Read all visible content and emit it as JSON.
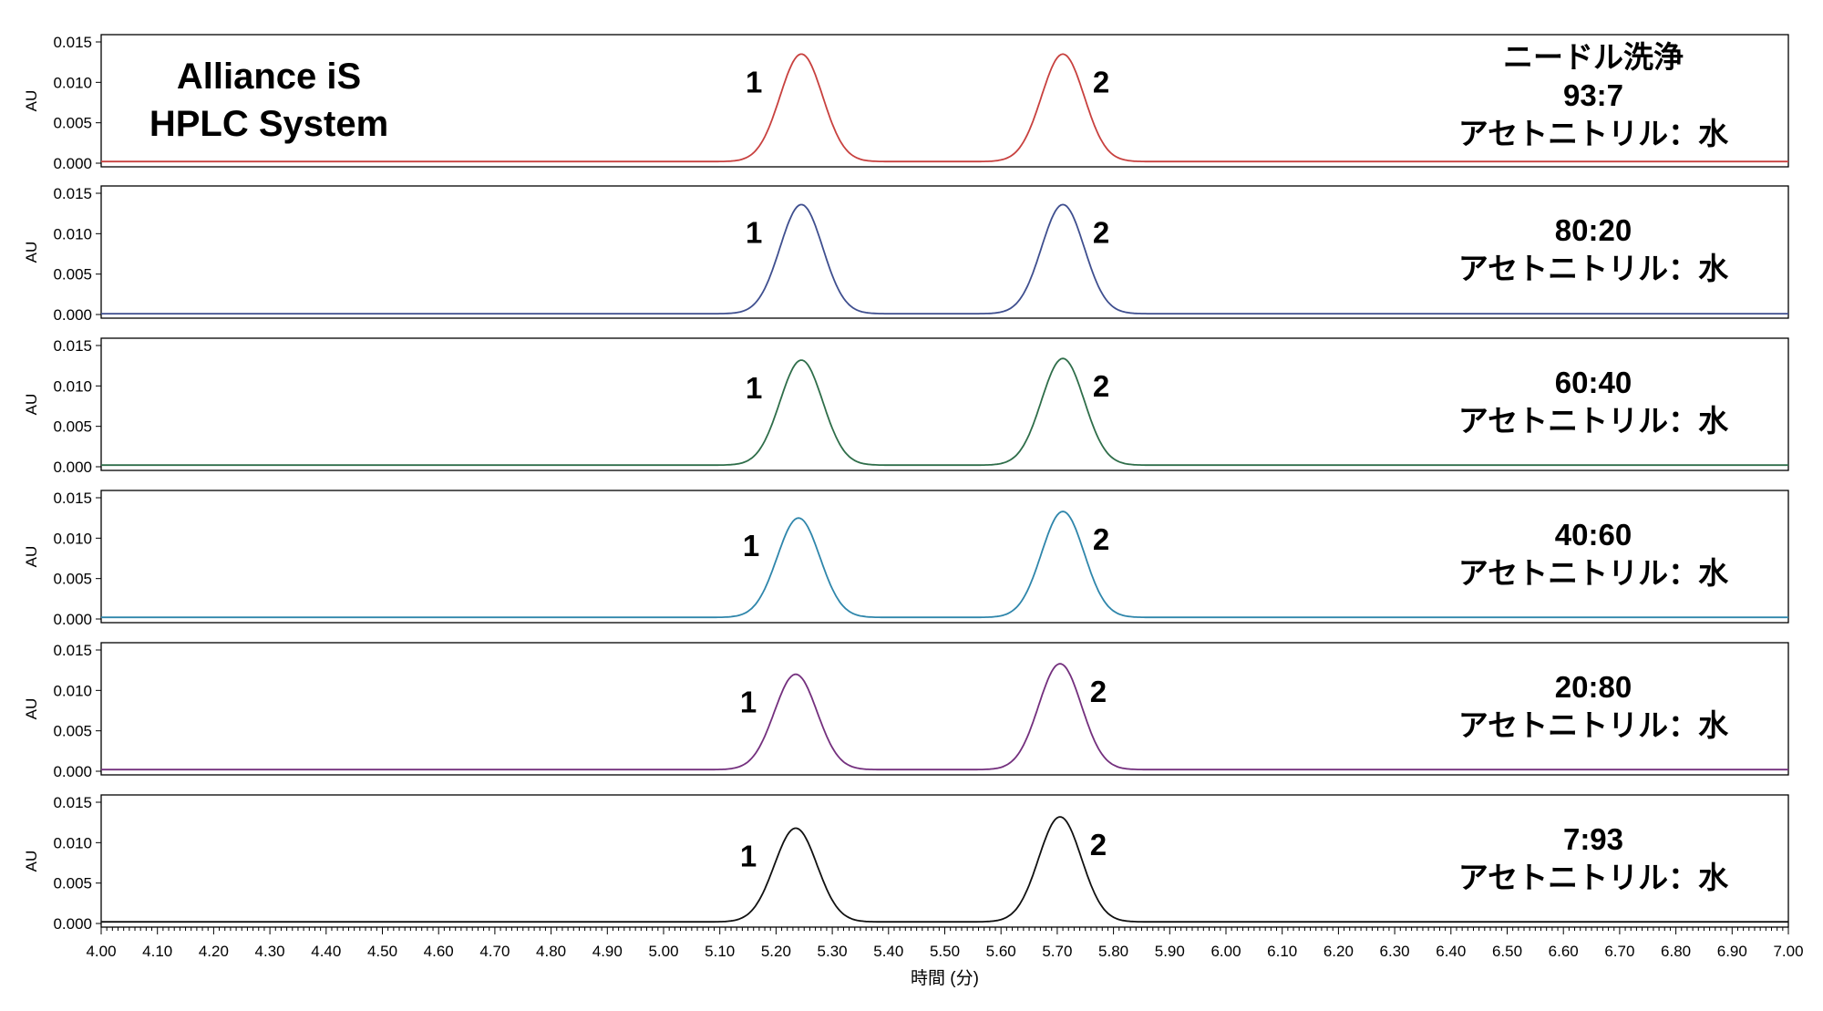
{
  "chart_data": {
    "type": "line",
    "title": [
      "Alliance iS",
      "HPLC System"
    ],
    "xlabel": "時間 (分)",
    "ylabel": "AU",
    "xlim": [
      4.0,
      7.0
    ],
    "ylim": [
      0.0,
      0.015
    ],
    "x_ticks": [
      "4.00",
      "4.10",
      "4.20",
      "4.30",
      "4.40",
      "4.50",
      "4.60",
      "4.70",
      "4.80",
      "4.90",
      "5.00",
      "5.10",
      "5.20",
      "5.30",
      "5.40",
      "5.50",
      "5.60",
      "5.70",
      "5.80",
      "5.90",
      "6.00",
      "6.10",
      "6.20",
      "6.30",
      "6.40",
      "6.50",
      "6.60",
      "6.70",
      "6.80",
      "6.90",
      "7.00"
    ],
    "y_ticks": [
      "0.000",
      "0.005",
      "0.010",
      "0.015"
    ],
    "peak_labels": [
      "1",
      "2"
    ],
    "series": [
      {
        "color": "#c8413f",
        "baseline": 0.0002,
        "label_lines": [
          "ニードル洗浄",
          "93:7",
          "アセトニトリル：水"
        ],
        "peaks": [
          {
            "x": 5.245,
            "height": 0.0135
          },
          {
            "x": 5.71,
            "height": 0.0135
          }
        ]
      },
      {
        "color": "#3f4f8f",
        "baseline": 0.0001,
        "label_lines": [
          "80:20",
          "アセトニトリル：水"
        ],
        "peaks": [
          {
            "x": 5.245,
            "height": 0.0136
          },
          {
            "x": 5.71,
            "height": 0.0136
          }
        ]
      },
      {
        "color": "#2f6e4a",
        "baseline": 0.0002,
        "label_lines": [
          "60:40",
          "アセトニトリル：水"
        ],
        "peaks": [
          {
            "x": 5.245,
            "height": 0.0132
          },
          {
            "x": 5.71,
            "height": 0.0134
          }
        ]
      },
      {
        "color": "#2f86ab",
        "baseline": 0.0002,
        "label_lines": [
          "40:60",
          "アセトニトリル：水"
        ],
        "peaks": [
          {
            "x": 5.24,
            "height": 0.0125
          },
          {
            "x": 5.71,
            "height": 0.0133
          }
        ]
      },
      {
        "color": "#74307e",
        "baseline": 0.0002,
        "label_lines": [
          "20:80",
          "アセトニトリル：水"
        ],
        "peaks": [
          {
            "x": 5.235,
            "height": 0.012
          },
          {
            "x": 5.705,
            "height": 0.0133
          }
        ]
      },
      {
        "color": "#111111",
        "baseline": 0.0002,
        "label_lines": [
          "7:93",
          "アセトニトリル：水"
        ],
        "peaks": [
          {
            "x": 5.235,
            "height": 0.0118
          },
          {
            "x": 5.705,
            "height": 0.0132
          }
        ]
      }
    ]
  }
}
